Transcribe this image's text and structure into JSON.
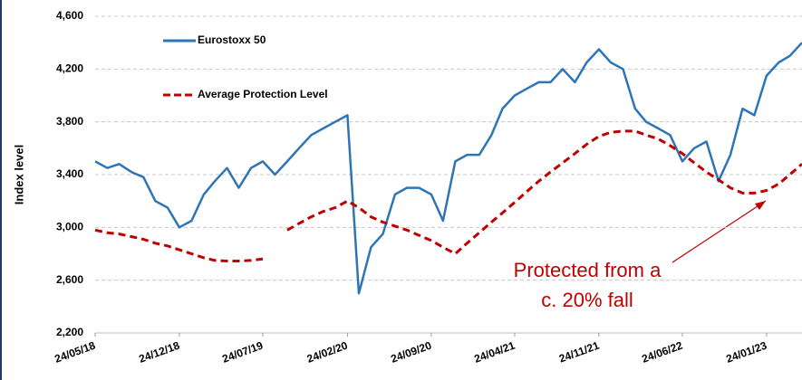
{
  "chart_data": {
    "type": "line",
    "ylabel": "Index level",
    "x": [
      "24/05/18",
      "24/06/18",
      "24/07/18",
      "24/08/18",
      "24/09/18",
      "24/10/18",
      "24/11/18",
      "24/12/18",
      "24/01/19",
      "24/02/19",
      "24/03/19",
      "24/04/19",
      "24/05/19",
      "24/06/19",
      "24/07/19",
      "24/08/19",
      "24/09/19",
      "24/10/19",
      "24/11/19",
      "24/12/19",
      "24/01/20",
      "24/02/20",
      "24/03/20",
      "24/04/20",
      "24/05/20",
      "24/06/20",
      "24/07/20",
      "24/08/20",
      "24/09/20",
      "24/10/20",
      "24/11/20",
      "24/12/20",
      "24/01/21",
      "24/02/21",
      "24/03/21",
      "24/04/21",
      "24/05/21",
      "24/06/21",
      "24/07/21",
      "24/08/21",
      "24/09/21",
      "24/10/21",
      "24/11/21",
      "24/12/21",
      "24/01/22",
      "24/02/22",
      "24/03/22",
      "24/04/22",
      "24/05/22",
      "24/06/22",
      "24/07/22",
      "24/08/22",
      "24/09/22",
      "24/10/22",
      "24/11/22",
      "24/12/22",
      "24/01/23",
      "24/02/23",
      "24/03/23",
      "24/04/23"
    ],
    "series": [
      {
        "name": "Eurostoxx 50",
        "color": "#2e75b6",
        "dashed": false,
        "values": [
          3500,
          3450,
          3480,
          3420,
          3380,
          3200,
          3150,
          3000,
          3050,
          3250,
          3350,
          3450,
          3300,
          3450,
          3500,
          3400,
          3500,
          3600,
          3700,
          3750,
          3800,
          3850,
          2500,
          2850,
          2950,
          3250,
          3300,
          3300,
          3250,
          3050,
          3500,
          3550,
          3550,
          3700,
          3900,
          4000,
          4050,
          4100,
          4100,
          4200,
          4100,
          4250,
          4350,
          4250,
          4200,
          3900,
          3800,
          3750,
          3700,
          3500,
          3600,
          3650,
          3350,
          3550,
          3900,
          3850,
          4150,
          4250,
          4300,
          4400
        ]
      },
      {
        "name": "Average Protection Level",
        "color": "#c00000",
        "dashed": true,
        "values": [
          2980,
          2960,
          2950,
          2930,
          2910,
          2880,
          2860,
          2830,
          2800,
          2770,
          2750,
          2745,
          2745,
          2750,
          2760,
          null,
          2980,
          3030,
          3080,
          3120,
          3150,
          3200,
          3150,
          3080,
          3040,
          3010,
          2980,
          2940,
          2900,
          2850,
          2800,
          2880,
          2960,
          3040,
          3110,
          3190,
          3270,
          3350,
          3420,
          3490,
          3560,
          3630,
          3690,
          3720,
          3730,
          3730,
          3700,
          3670,
          3620,
          3560,
          3490,
          3420,
          3360,
          3300,
          3260,
          3260,
          3280,
          3330,
          3400,
          3480
        ]
      }
    ],
    "xlim": [
      "24/05/18",
      "24/04/23"
    ],
    "xticks": [
      "24/05/18",
      "24/12/18",
      "24/07/19",
      "24/02/20",
      "24/09/20",
      "24/04/21",
      "24/11/21",
      "24/06/22",
      "24/01/23"
    ],
    "ylim": [
      2200,
      4600
    ],
    "yticks": [
      {
        "value": 2200,
        "label": "2,200"
      },
      {
        "value": 2600,
        "label": "2,600"
      },
      {
        "value": 3000,
        "label": "3,000"
      },
      {
        "value": 3400,
        "label": "3,400"
      },
      {
        "value": 3800,
        "label": "3,800"
      },
      {
        "value": 4200,
        "label": "4,200"
      },
      {
        "value": 4600,
        "label": "4,600"
      }
    ],
    "grid": true,
    "legend": "upper left",
    "annotation": {
      "lines": [
        "Protected from a",
        "c. 20% fall"
      ],
      "color": "#c00000"
    }
  }
}
